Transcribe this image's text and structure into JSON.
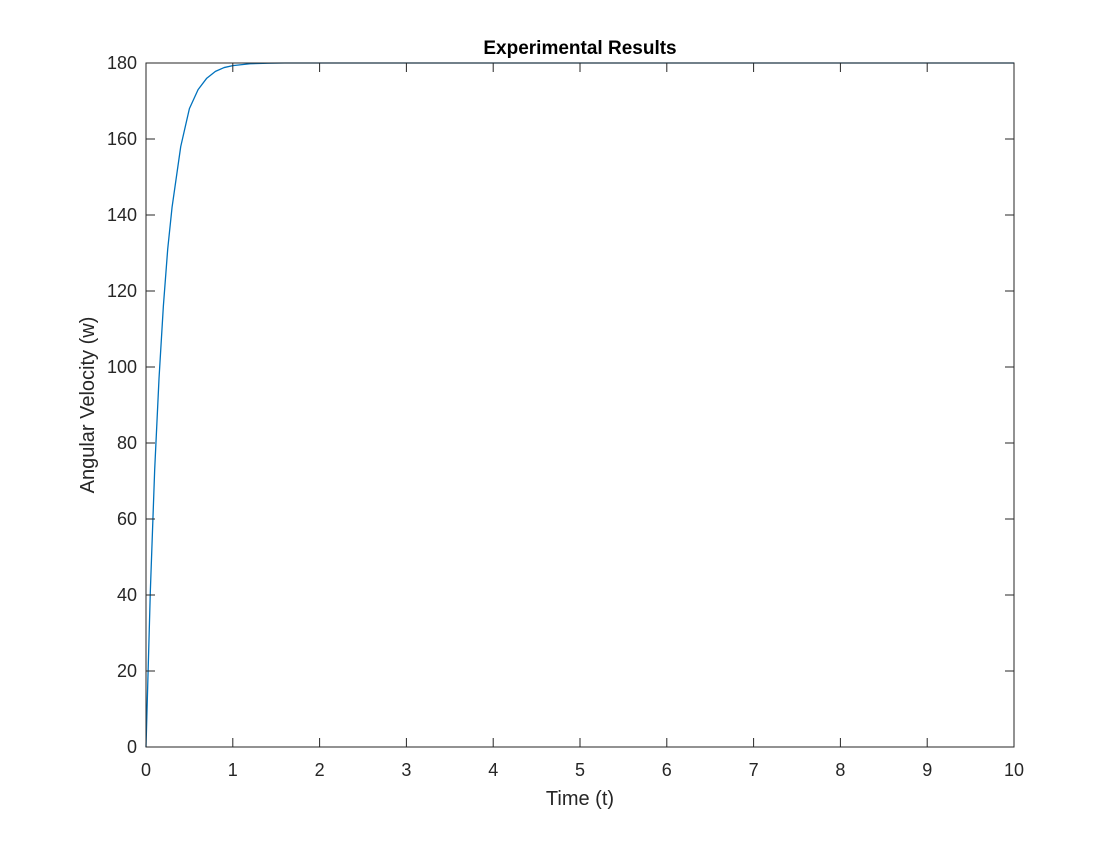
{
  "chart_data": {
    "type": "line",
    "title": "Experimental Results",
    "xlabel": "Time (t)",
    "ylabel": "Angular Velocity (w)",
    "xlim": [
      0,
      10
    ],
    "ylim": [
      0,
      180
    ],
    "xticks": [
      0,
      1,
      2,
      3,
      4,
      5,
      6,
      7,
      8,
      9,
      10
    ],
    "yticks": [
      0,
      20,
      40,
      60,
      80,
      100,
      120,
      140,
      160,
      180
    ],
    "grid": false,
    "box": true,
    "series": [
      {
        "color": "#0072BD",
        "x": [
          0,
          0.05,
          0.1,
          0.15,
          0.2,
          0.25,
          0.3,
          0.4,
          0.5,
          0.6,
          0.7,
          0.8,
          0.9,
          1.0,
          1.2,
          1.4,
          1.6,
          1.8,
          2.0,
          2.5,
          3,
          4,
          5,
          6,
          7,
          8,
          9,
          10
        ],
        "y": [
          0,
          41,
          73,
          97,
          116,
          131,
          142,
          158,
          168,
          173,
          176,
          177.8,
          178.8,
          179.3,
          179.8,
          179.95,
          180,
          180,
          180,
          180,
          180,
          180,
          180,
          180,
          180,
          180,
          180,
          180
        ]
      }
    ]
  }
}
